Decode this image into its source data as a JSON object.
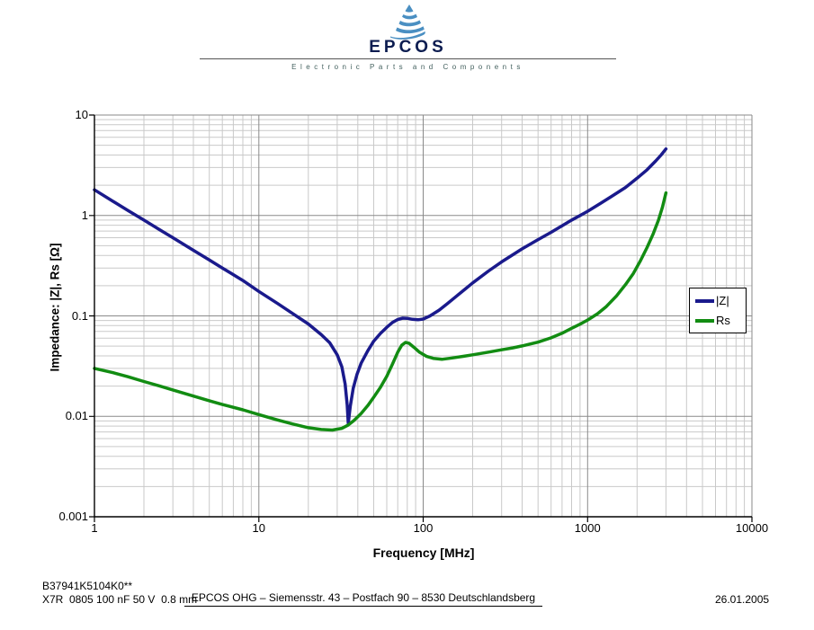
{
  "header": {
    "brand": "EPCOS",
    "tagline": "Electronic Parts and Components",
    "logo_color": "#4a8fc2",
    "brand_color": "#0c1c50"
  },
  "chart_data": {
    "type": "line",
    "xlabel": "Frequency [MHz]",
    "ylabel": "Impedance: |Z|, Rs [Ω]",
    "x_scale": "log",
    "y_scale": "log",
    "xlim": [
      1,
      10000
    ],
    "ylim": [
      0.001,
      10
    ],
    "x_ticks": [
      [
        1,
        "1"
      ],
      [
        10,
        "10"
      ],
      [
        100,
        "100"
      ],
      [
        1000,
        "1000"
      ],
      [
        10000,
        "10000"
      ]
    ],
    "y_ticks": [
      [
        10,
        "10"
      ],
      [
        1,
        "1"
      ],
      [
        0.1,
        "0.1"
      ],
      [
        0.01,
        "0.01"
      ],
      [
        0.001,
        "0.001"
      ]
    ],
    "grid": "major and minor log gridlines, both axes",
    "legend_position": "middle-right",
    "colors": {
      "major_grid": "#8a8a8a",
      "minor_grid": "#c9c9c9",
      "axis": "#000000"
    },
    "series": [
      {
        "name": "|Z|",
        "color": "#1a1a8c",
        "points": [
          [
            1,
            1.8
          ],
          [
            1.3,
            1.38
          ],
          [
            1.6,
            1.12
          ],
          [
            2,
            0.9
          ],
          [
            2.5,
            0.72
          ],
          [
            3,
            0.6
          ],
          [
            4,
            0.45
          ],
          [
            5,
            0.36
          ],
          [
            6,
            0.3
          ],
          [
            8,
            0.225
          ],
          [
            10,
            0.175
          ],
          [
            13,
            0.133
          ],
          [
            16,
            0.106
          ],
          [
            20,
            0.083
          ],
          [
            24,
            0.065
          ],
          [
            27,
            0.054
          ],
          [
            30,
            0.041
          ],
          [
            32,
            0.031
          ],
          [
            33.5,
            0.021
          ],
          [
            34.5,
            0.013
          ],
          [
            35,
            0.0085
          ],
          [
            36,
            0.0125
          ],
          [
            37.5,
            0.019
          ],
          [
            39.5,
            0.026
          ],
          [
            42,
            0.034
          ],
          [
            46,
            0.045
          ],
          [
            50,
            0.056
          ],
          [
            55,
            0.067
          ],
          [
            60,
            0.077
          ],
          [
            65,
            0.086
          ],
          [
            70,
            0.092
          ],
          [
            75,
            0.095
          ],
          [
            80,
            0.0945
          ],
          [
            86,
            0.0925
          ],
          [
            93,
            0.0915
          ],
          [
            100,
            0.093
          ],
          [
            110,
            0.1
          ],
          [
            125,
            0.114
          ],
          [
            140,
            0.132
          ],
          [
            160,
            0.158
          ],
          [
            180,
            0.185
          ],
          [
            200,
            0.213
          ],
          [
            250,
            0.28
          ],
          [
            300,
            0.345
          ],
          [
            350,
            0.405
          ],
          [
            400,
            0.465
          ],
          [
            500,
            0.575
          ],
          [
            600,
            0.68
          ],
          [
            700,
            0.79
          ],
          [
            800,
            0.9
          ],
          [
            900,
            1.0
          ],
          [
            1000,
            1.1
          ],
          [
            1200,
            1.32
          ],
          [
            1400,
            1.55
          ],
          [
            1700,
            1.9
          ],
          [
            2000,
            2.35
          ],
          [
            2300,
            2.85
          ],
          [
            2600,
            3.5
          ],
          [
            2800,
            4.0
          ],
          [
            3000,
            4.6
          ]
        ]
      },
      {
        "name": "Rs",
        "color": "#128c12",
        "points": [
          [
            1,
            0.03
          ],
          [
            1.3,
            0.0272
          ],
          [
            1.6,
            0.0248
          ],
          [
            2,
            0.0222
          ],
          [
            2.5,
            0.02
          ],
          [
            3,
            0.0183
          ],
          [
            4,
            0.0159
          ],
          [
            5,
            0.0143
          ],
          [
            6,
            0.0131
          ],
          [
            8,
            0.0116
          ],
          [
            10,
            0.0104
          ],
          [
            13,
            0.0092
          ],
          [
            16,
            0.0084
          ],
          [
            20,
            0.0077
          ],
          [
            24,
            0.0074
          ],
          [
            28,
            0.0073
          ],
          [
            32,
            0.0076
          ],
          [
            35,
            0.0082
          ],
          [
            38,
            0.0091
          ],
          [
            42,
            0.0107
          ],
          [
            46,
            0.0128
          ],
          [
            50,
            0.0155
          ],
          [
            55,
            0.0195
          ],
          [
            60,
            0.025
          ],
          [
            65,
            0.033
          ],
          [
            70,
            0.0435
          ],
          [
            74,
            0.051
          ],
          [
            78,
            0.0545
          ],
          [
            82,
            0.0535
          ],
          [
            88,
            0.0485
          ],
          [
            95,
            0.0435
          ],
          [
            105,
            0.0395
          ],
          [
            115,
            0.0378
          ],
          [
            130,
            0.037
          ],
          [
            150,
            0.0381
          ],
          [
            175,
            0.0396
          ],
          [
            200,
            0.041
          ],
          [
            250,
            0.0436
          ],
          [
            300,
            0.046
          ],
          [
            350,
            0.048
          ],
          [
            400,
            0.0502
          ],
          [
            500,
            0.0548
          ],
          [
            600,
            0.0605
          ],
          [
            700,
            0.0672
          ],
          [
            800,
            0.0752
          ],
          [
            900,
            0.0828
          ],
          [
            1000,
            0.091
          ],
          [
            1150,
            0.105
          ],
          [
            1300,
            0.124
          ],
          [
            1500,
            0.158
          ],
          [
            1700,
            0.205
          ],
          [
            1900,
            0.265
          ],
          [
            2100,
            0.355
          ],
          [
            2300,
            0.48
          ],
          [
            2500,
            0.65
          ],
          [
            2700,
            0.9
          ],
          [
            2850,
            1.2
          ],
          [
            3000,
            1.68
          ]
        ]
      }
    ]
  },
  "footer": {
    "part_number": "B37941K5104K0**",
    "description": "X7R  0805 100 nF 50 V  0.8 mm",
    "company_line": "EPCOS OHG – Siemensstr. 43 – Postfach 90 – 8530 Deutschlandsberg",
    "date": "26.01.2005"
  }
}
